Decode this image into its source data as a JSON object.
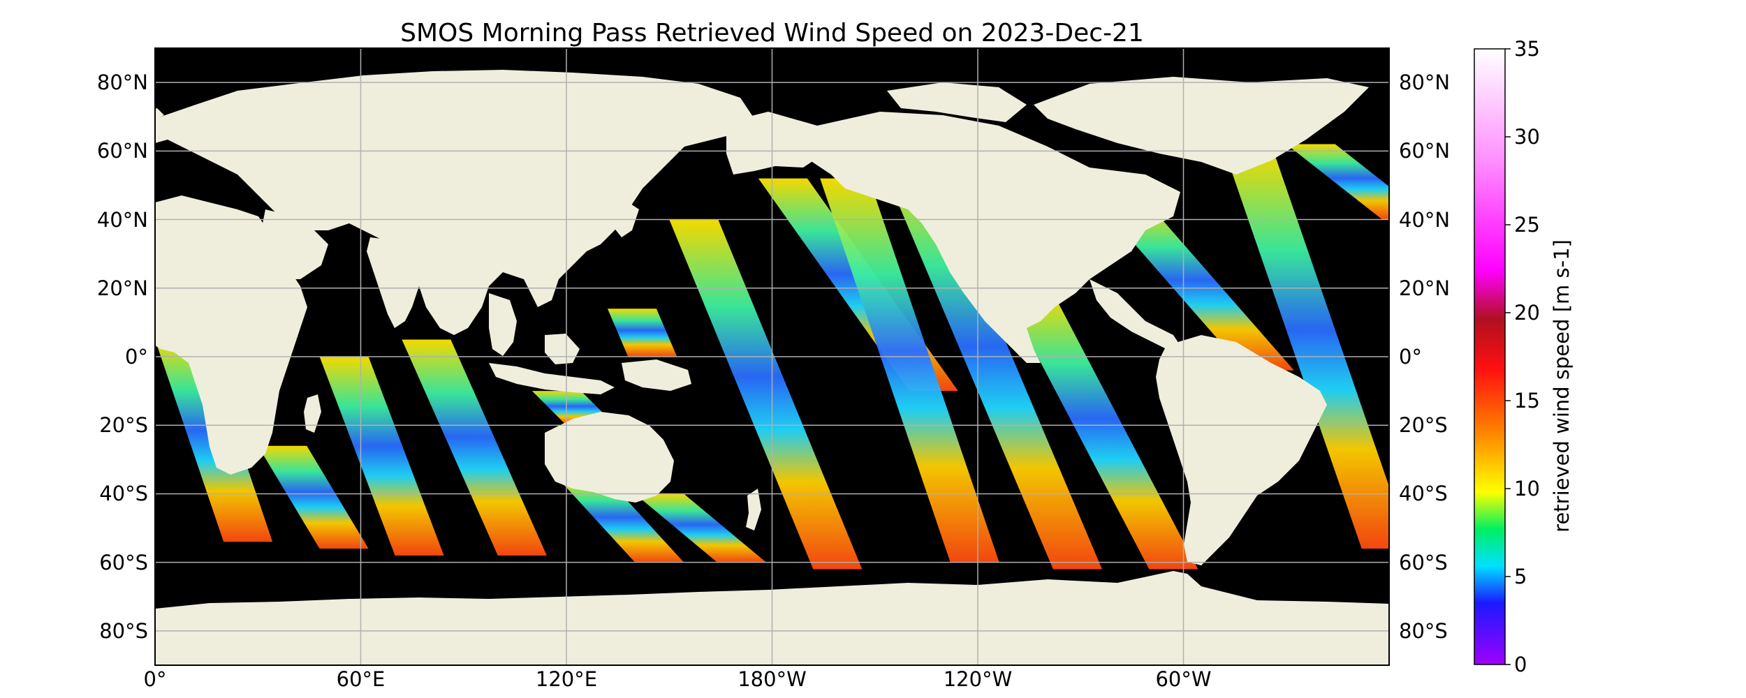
{
  "title": "SMOS Morning Pass Retrieved Wind Speed on 2023-Dec-21",
  "map": {
    "projection": "PlateCarree",
    "central_longitude_label": "0°",
    "background_ocean_color": "#000000",
    "land_color": "#efeedd",
    "gridlines": true,
    "lat_ticks": [
      "80°N",
      "60°N",
      "40°N",
      "20°N",
      "0°",
      "20°S",
      "40°S",
      "60°S",
      "80°S"
    ],
    "lon_ticks": [
      "0°",
      "60°E",
      "120°E",
      "180°W",
      "120°W",
      "60°W"
    ]
  },
  "colorbar": {
    "label": "retrieved wind speed [m s-1]",
    "ticks": [
      "0",
      "5",
      "10",
      "15",
      "20",
      "25",
      "30",
      "35"
    ],
    "range": [
      0,
      35
    ],
    "colors": [
      "#a000ff",
      "#1a1aff",
      "#00e0ff",
      "#00f060",
      "#ffff00",
      "#ff8000",
      "#ff1010",
      "#b01020",
      "#ff00ff",
      "#ffffff"
    ]
  },
  "swaths": [
    {
      "lon_start": 0,
      "lon_end": 20,
      "lat_top": 5,
      "lat_bottom": -54
    },
    {
      "lon_start": 30,
      "lon_end": 48,
      "lat_top": -26,
      "lat_bottom": -56
    },
    {
      "lon_start": 48,
      "lon_end": 70,
      "lat_top": 0,
      "lat_bottom": -58
    },
    {
      "lon_start": 72,
      "lon_end": 100,
      "lat_top": 5,
      "lat_bottom": -58
    },
    {
      "lon_start": 110,
      "lon_end": 120,
      "lat_top": -10,
      "lat_bottom": -20
    },
    {
      "lon_start": 118,
      "lon_end": 140,
      "lat_top": -36,
      "lat_bottom": -60
    },
    {
      "lon_start": 132,
      "lon_end": 138,
      "lat_top": 14,
      "lat_bottom": 0
    },
    {
      "lon_start": 140,
      "lon_end": 164,
      "lat_top": -40,
      "lat_bottom": -60
    },
    {
      "lon_start": 150,
      "lon_end": 192,
      "lat_top": 40,
      "lat_bottom": -62
    },
    {
      "lon_start": 176,
      "lon_end": 220,
      "lat_top": 52,
      "lat_bottom": -10
    },
    {
      "lon_start": 194,
      "lon_end": 232,
      "lat_top": 52,
      "lat_bottom": -60
    },
    {
      "lon_start": 212,
      "lon_end": 262,
      "lat_top": 56,
      "lat_bottom": -62
    },
    {
      "lon_start": 248,
      "lon_end": 290,
      "lat_top": 18,
      "lat_bottom": -62
    },
    {
      "lon_start": 276,
      "lon_end": 318,
      "lat_top": 44,
      "lat_bottom": -4
    },
    {
      "lon_start": 312,
      "lon_end": 352,
      "lat_top": 60,
      "lat_bottom": -56
    },
    {
      "lon_start": 330,
      "lon_end": 358,
      "lat_top": 62,
      "lat_bottom": 40
    }
  ]
}
